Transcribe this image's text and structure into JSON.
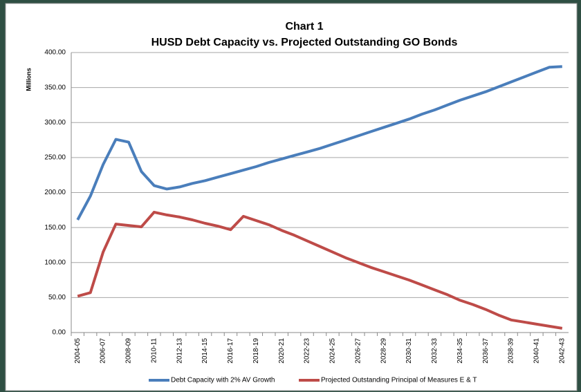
{
  "chart_data": {
    "type": "line",
    "title": "Chart 1",
    "subtitle": "HUSD Debt Capacity vs. Projected Outstanding GO Bonds",
    "y_label": "Millions",
    "categories": [
      "2004-05",
      null,
      "2006-07",
      null,
      "2008-09",
      null,
      "2010-11",
      null,
      "2012-13",
      null,
      "2014-15",
      null,
      "2016-17",
      null,
      "2018-19",
      null,
      "2020-21",
      null,
      "2022-23",
      null,
      "2024-25",
      null,
      "2026-27",
      null,
      "2028-29",
      null,
      "2030-31",
      null,
      "2032-33",
      null,
      "2034-35",
      null,
      "2036-37",
      null,
      "2038-39",
      null,
      "2040-41",
      null,
      "2042-43"
    ],
    "series": [
      {
        "name": "Debt Capacity with 2% AV Growth",
        "color": "#4a7ebb",
        "values": [
          161,
          195,
          240,
          276,
          272,
          230,
          210,
          205,
          208,
          213,
          217,
          222,
          227,
          232,
          237,
          243,
          248,
          253,
          258,
          263,
          269,
          275,
          281,
          287,
          293,
          299,
          305,
          312,
          318,
          325,
          332,
          338,
          344,
          351,
          358,
          365,
          372,
          379,
          380
        ]
      },
      {
        "name": "Projected Outstanding Principal of Measures E & T",
        "color": "#be4b48",
        "values": [
          52,
          57,
          115,
          155,
          153,
          151,
          172,
          168,
          165,
          161,
          156,
          152,
          147,
          166,
          160,
          154,
          146,
          139,
          131,
          123,
          115,
          107,
          100,
          93,
          87,
          81,
          75,
          68,
          61,
          54,
          46,
          40,
          33,
          25,
          18,
          15,
          12,
          9,
          6
        ]
      }
    ],
    "ylim": [
      0,
      400
    ],
    "yticks": [
      {
        "value": 0,
        "label": "0.00"
      },
      {
        "value": 50,
        "label": "50.00"
      },
      {
        "value": 100,
        "label": "100.00"
      },
      {
        "value": 150,
        "label": "150.00"
      },
      {
        "value": 200,
        "label": "200.00"
      },
      {
        "value": 250,
        "label": "250.00"
      },
      {
        "value": 300,
        "label": "300.00"
      },
      {
        "value": 350,
        "label": "350.00"
      },
      {
        "value": 400,
        "label": "400.00"
      }
    ],
    "grid": true,
    "legend": "bottom"
  }
}
